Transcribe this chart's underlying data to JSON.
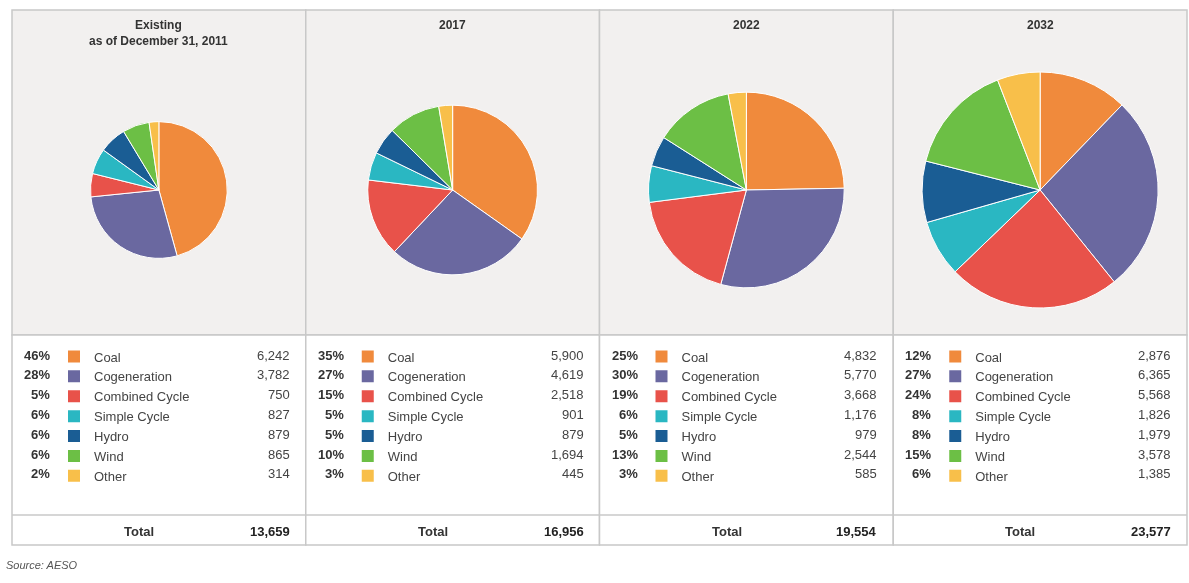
{
  "chart_data": [
    {
      "type": "pie",
      "title": "Existing\nas of December 31, 2011",
      "legend": "bottom",
      "categories": [
        "Coal",
        "Cogeneration",
        "Combined Cycle",
        "Simple Cycle",
        "Hydro",
        "Wind",
        "Other"
      ],
      "values": [
        6242,
        3782,
        750,
        827,
        879,
        865,
        314
      ],
      "value_labels": [
        "6,242",
        "3,782",
        "750",
        "827",
        "879",
        "865",
        "314"
      ],
      "colors": [
        "#f08a3c",
        "#6a68a0",
        "#e8524a",
        "#2ab7c2",
        "#1a5d94",
        "#6cbf45",
        "#f8bf4a"
      ],
      "totals": [
        "13,659"
      ],
      "annotations": [
        "46%",
        "28%",
        "5%",
        "6%",
        "6%",
        "6%",
        "2%",
        "Total",
        "Source: AESO"
      ]
    },
    {
      "type": "pie",
      "title": "2017",
      "legend": "bottom",
      "categories": [
        "Coal",
        "Cogeneration",
        "Combined Cycle",
        "Simple Cycle",
        "Hydro",
        "Wind",
        "Other"
      ],
      "values": [
        5900,
        4619,
        2518,
        901,
        879,
        1694,
        445
      ],
      "value_labels": [
        "5,900",
        "4,619",
        "2,518",
        "901",
        "879",
        "1,694",
        "445"
      ],
      "colors": [
        "#f08a3c",
        "#6a68a0",
        "#e8524a",
        "#2ab7c2",
        "#1a5d94",
        "#6cbf45",
        "#f8bf4a"
      ],
      "totals": [
        "16,956"
      ],
      "annotations": [
        "35%",
        "27%",
        "15%",
        "5%",
        "5%",
        "10%",
        "3%",
        "Total"
      ]
    },
    {
      "type": "pie",
      "title": "2022",
      "legend": "bottom",
      "categories": [
        "Coal",
        "Cogeneration",
        "Combined Cycle",
        "Simple Cycle",
        "Hydro",
        "Wind",
        "Other"
      ],
      "values": [
        4832,
        5770,
        3668,
        1176,
        979,
        2544,
        585
      ],
      "value_labels": [
        "4,832",
        "5,770",
        "3,668",
        "1,176",
        "979",
        "2,544",
        "585"
      ],
      "colors": [
        "#f08a3c",
        "#6a68a0",
        "#e8524a",
        "#2ab7c2",
        "#1a5d94",
        "#6cbf45",
        "#f8bf4a"
      ],
      "totals": [
        "19,554"
      ],
      "annotations": [
        "25%",
        "30%",
        "19%",
        "6%",
        "5%",
        "13%",
        "3%",
        "Total"
      ]
    },
    {
      "type": "pie",
      "title": "2032",
      "legend": "bottom",
      "categories": [
        "Coal",
        "Cogeneration",
        "Combined Cycle",
        "Simple Cycle",
        "Hydro",
        "Wind",
        "Other"
      ],
      "values": [
        2876,
        6365,
        5568,
        1826,
        1979,
        3578,
        1385
      ],
      "value_labels": [
        "2,876",
        "6,365",
        "5,568",
        "1,826",
        "1,979",
        "3,578",
        "1,385"
      ],
      "colors": [
        "#f08a3c",
        "#6a68a0",
        "#e8524a",
        "#2ab7c2",
        "#1a5d94",
        "#6cbf45",
        "#f8bf4a"
      ],
      "totals": [
        "23,577"
      ],
      "annotations": [
        "12%",
        "27%",
        "24%",
        "8%",
        "8%",
        "15%",
        "6%",
        "Total"
      ]
    }
  ]
}
